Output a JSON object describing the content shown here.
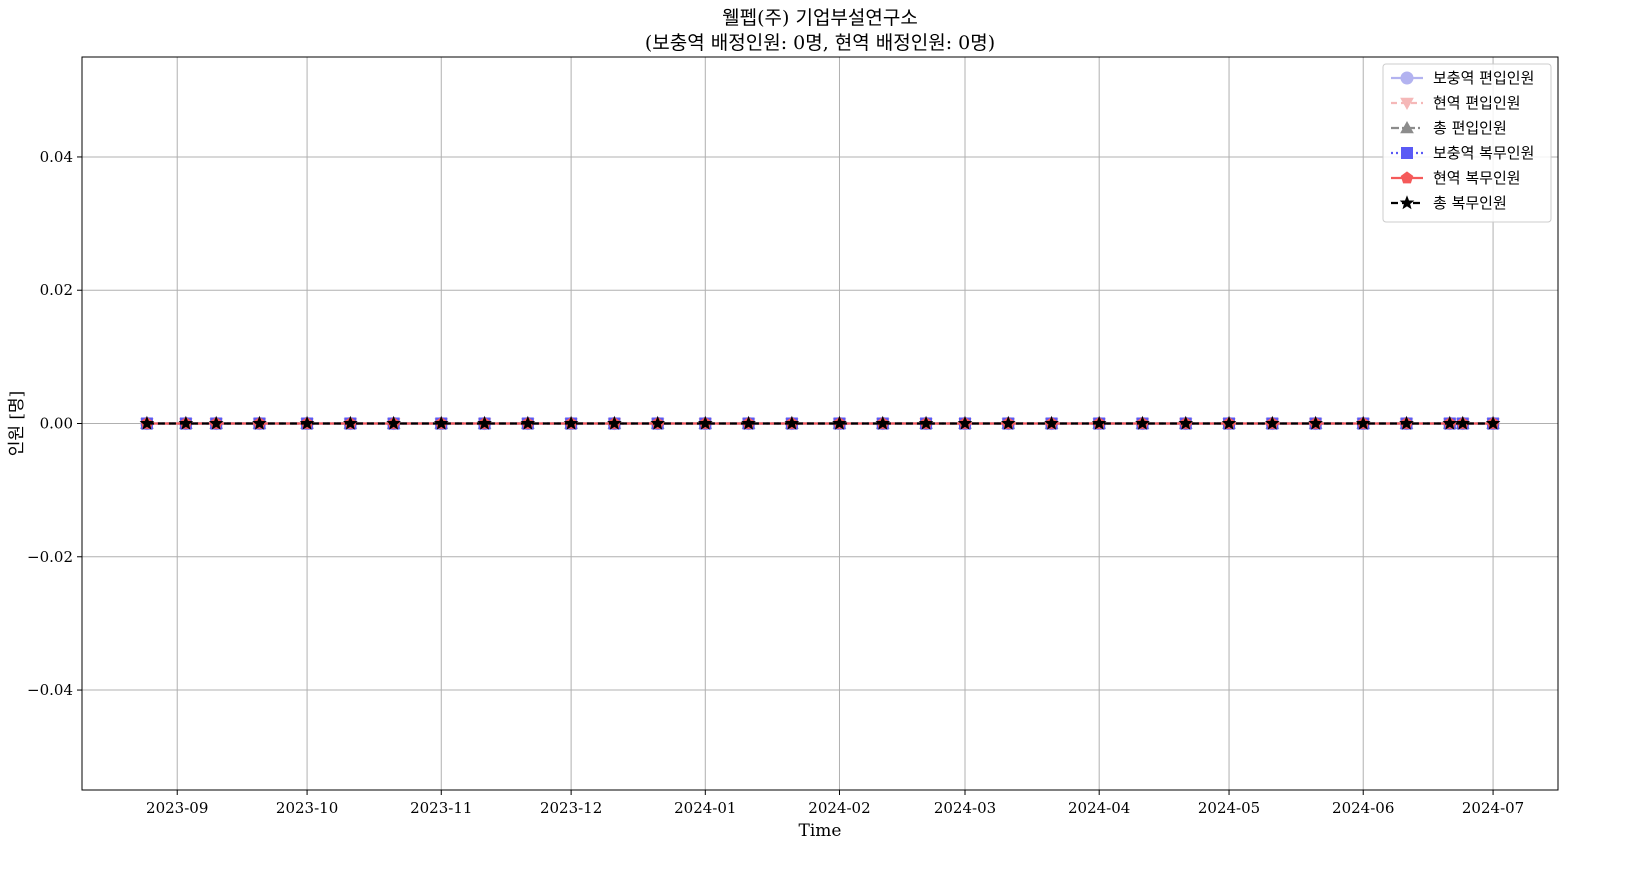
{
  "chart_data": {
    "type": "line",
    "title_line1": "웰펩(주) 기업부설연구소",
    "title_line2": "(보충역 배정인원: 0명, 현역 배정인원: 0명)",
    "xlabel": "Time",
    "ylabel": "인원 [명]",
    "x_tick_labels": [
      "2023-09",
      "2023-10",
      "2023-11",
      "2023-12",
      "2024-01",
      "2024-02",
      "2024-03",
      "2024-04",
      "2024-05",
      "2024-06",
      "2024-07"
    ],
    "x_ticks": [
      "2023-09-01",
      "2023-10-01",
      "2023-11-01",
      "2023-12-01",
      "2024-01-01",
      "2024-02-01",
      "2024-03-01",
      "2024-04-01",
      "2024-05-01",
      "2024-06-01",
      "2024-07-01"
    ],
    "xlim": [
      "2023-08-10",
      "2024-07-16"
    ],
    "y_ticks": [
      -0.04,
      -0.02,
      0.0,
      0.02,
      0.04
    ],
    "y_tick_labels": [
      "−0.04",
      "−0.02",
      "0.00",
      "0.02",
      "0.04"
    ],
    "ylim": [
      -0.055,
      0.055
    ],
    "grid": true,
    "legend_position": "top-right",
    "x": [
      "2023-08-25",
      "2023-09-03",
      "2023-09-10",
      "2023-09-20",
      "2023-10-01",
      "2023-10-11",
      "2023-10-21",
      "2023-11-01",
      "2023-11-11",
      "2023-11-21",
      "2023-12-01",
      "2023-12-11",
      "2023-12-21",
      "2024-01-01",
      "2024-01-11",
      "2024-01-21",
      "2024-02-01",
      "2024-02-11",
      "2024-02-21",
      "2024-03-01",
      "2024-03-11",
      "2024-03-21",
      "2024-04-01",
      "2024-04-11",
      "2024-04-21",
      "2024-05-01",
      "2024-05-11",
      "2024-05-21",
      "2024-06-01",
      "2024-06-11",
      "2024-06-21",
      "2024-06-24",
      "2024-07-01"
    ],
    "series": [
      {
        "name": "보충역 편입인원",
        "color": "#b3b3f0",
        "dash": "",
        "marker": "circle",
        "values": [
          0,
          0,
          0,
          0,
          0,
          0,
          0,
          0,
          0,
          0,
          0,
          0,
          0,
          0,
          0,
          0,
          0,
          0,
          0,
          0,
          0,
          0,
          0,
          0,
          0,
          0,
          0,
          0,
          0,
          0,
          0,
          0,
          0
        ]
      },
      {
        "name": "현역 편입인원",
        "color": "#f5b8b8",
        "dash": "6,4",
        "marker": "triangle-down",
        "values": [
          0,
          0,
          0,
          0,
          0,
          0,
          0,
          0,
          0,
          0,
          0,
          0,
          0,
          0,
          0,
          0,
          0,
          0,
          0,
          0,
          0,
          0,
          0,
          0,
          0,
          0,
          0,
          0,
          0,
          0,
          0,
          0,
          0
        ]
      },
      {
        "name": "총 편입인원",
        "color": "#8c8c8c",
        "dash": "8,3,2,3",
        "marker": "triangle-up",
        "values": [
          0,
          0,
          0,
          0,
          0,
          0,
          0,
          0,
          0,
          0,
          0,
          0,
          0,
          0,
          0,
          0,
          0,
          0,
          0,
          0,
          0,
          0,
          0,
          0,
          0,
          0,
          0,
          0,
          0,
          0,
          0,
          0,
          0
        ]
      },
      {
        "name": "보충역 복무인원",
        "color": "#5a5af5",
        "dash": "2,3",
        "marker": "square",
        "values": [
          0,
          0,
          0,
          0,
          0,
          0,
          0,
          0,
          0,
          0,
          0,
          0,
          0,
          0,
          0,
          0,
          0,
          0,
          0,
          0,
          0,
          0,
          0,
          0,
          0,
          0,
          0,
          0,
          0,
          0,
          0,
          0,
          0
        ]
      },
      {
        "name": "현역 복무인원",
        "color": "#f55a5a",
        "dash": "",
        "marker": "pentagon",
        "values": [
          0,
          0,
          0,
          0,
          0,
          0,
          0,
          0,
          0,
          0,
          0,
          0,
          0,
          0,
          0,
          0,
          0,
          0,
          0,
          0,
          0,
          0,
          0,
          0,
          0,
          0,
          0,
          0,
          0,
          0,
          0,
          0,
          0
        ]
      },
      {
        "name": "총 복무인원",
        "color": "#000000",
        "dash": "7,4",
        "marker": "star",
        "values": [
          0,
          0,
          0,
          0,
          0,
          0,
          0,
          0,
          0,
          0,
          0,
          0,
          0,
          0,
          0,
          0,
          0,
          0,
          0,
          0,
          0,
          0,
          0,
          0,
          0,
          0,
          0,
          0,
          0,
          0,
          0,
          0,
          0
        ]
      }
    ]
  }
}
